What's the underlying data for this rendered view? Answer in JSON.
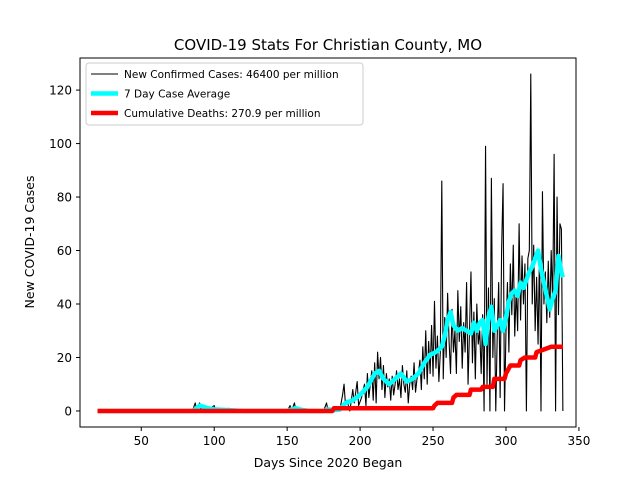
{
  "chart_data": {
    "type": "line",
    "title": "COVID-19 Stats For Christian County, MO",
    "xlabel": "Days Since 2020 Began",
    "ylabel": "New COVID-19 Cases",
    "xlim": [
      8,
      348
    ],
    "ylim": [
      -6,
      132
    ],
    "x_ticks": [
      50,
      100,
      150,
      200,
      250,
      300,
      350
    ],
    "y_ticks": [
      0,
      20,
      40,
      60,
      80,
      100,
      120
    ],
    "grid": false,
    "legend_position": "top-left",
    "series": [
      {
        "name": "New Confirmed Cases: 46400 per million",
        "color": "#000000",
        "style": "thin",
        "points": [
          [
            20,
            0
          ],
          [
            85,
            0
          ],
          [
            87,
            3
          ],
          [
            88,
            0
          ],
          [
            89,
            2
          ],
          [
            90,
            3
          ],
          [
            91,
            0
          ],
          [
            92,
            1
          ],
          [
            95,
            0
          ],
          [
            100,
            2
          ],
          [
            101,
            0
          ],
          [
            105,
            0
          ],
          [
            110,
            1
          ],
          [
            111,
            0
          ],
          [
            120,
            0
          ],
          [
            150,
            0
          ],
          [
            152,
            2
          ],
          [
            153,
            0
          ],
          [
            155,
            3
          ],
          [
            156,
            0
          ],
          [
            158,
            1
          ],
          [
            159,
            0
          ],
          [
            165,
            0
          ],
          [
            175,
            0
          ],
          [
            177,
            3
          ],
          [
            178,
            0
          ],
          [
            180,
            1
          ],
          [
            182,
            0
          ],
          [
            186,
            0
          ],
          [
            188,
            6
          ],
          [
            189,
            10
          ],
          [
            190,
            2
          ],
          [
            191,
            4
          ],
          [
            193,
            0
          ],
          [
            195,
            8
          ],
          [
            196,
            3
          ],
          [
            198,
            11
          ],
          [
            199,
            2
          ],
          [
            201,
            5
          ],
          [
            203,
            10
          ],
          [
            204,
            2
          ],
          [
            205,
            14
          ],
          [
            206,
            5
          ],
          [
            208,
            15
          ],
          [
            209,
            4
          ],
          [
            210,
            18
          ],
          [
            211,
            3
          ],
          [
            212,
            22
          ],
          [
            213,
            12
          ],
          [
            214,
            20
          ],
          [
            215,
            8
          ],
          [
            216,
            17
          ],
          [
            217,
            5
          ],
          [
            218,
            14
          ],
          [
            219,
            9
          ],
          [
            220,
            12
          ],
          [
            221,
            4
          ],
          [
            222,
            13
          ],
          [
            223,
            6
          ],
          [
            224,
            10
          ],
          [
            225,
            15
          ],
          [
            226,
            8
          ],
          [
            227,
            12
          ],
          [
            228,
            5
          ],
          [
            229,
            17
          ],
          [
            230,
            10
          ],
          [
            231,
            7
          ],
          [
            232,
            15
          ],
          [
            233,
            3
          ],
          [
            234,
            10
          ],
          [
            235,
            13
          ],
          [
            236,
            8
          ],
          [
            237,
            18
          ],
          [
            238,
            7
          ],
          [
            239,
            12
          ],
          [
            240,
            14
          ],
          [
            241,
            19
          ],
          [
            242,
            8
          ],
          [
            243,
            24
          ],
          [
            244,
            12
          ],
          [
            245,
            30
          ],
          [
            246,
            10
          ],
          [
            247,
            26
          ],
          [
            248,
            14
          ],
          [
            249,
            32
          ],
          [
            250,
            13
          ],
          [
            251,
            41
          ],
          [
            252,
            16
          ],
          [
            253,
            28
          ],
          [
            254,
            11
          ],
          [
            255,
            22
          ],
          [
            256,
            86
          ],
          [
            257,
            12
          ],
          [
            258,
            35
          ],
          [
            259,
            20
          ],
          [
            260,
            44
          ],
          [
            261,
            26
          ],
          [
            262,
            14
          ],
          [
            263,
            38
          ],
          [
            264,
            22
          ],
          [
            265,
            30
          ],
          [
            266,
            14
          ],
          [
            267,
            45
          ],
          [
            268,
            26
          ],
          [
            269,
            39
          ],
          [
            270,
            16
          ],
          [
            271,
            33
          ],
          [
            272,
            22
          ],
          [
            273,
            48
          ],
          [
            274,
            10
          ],
          [
            275,
            30
          ],
          [
            276,
            52
          ],
          [
            277,
            18
          ],
          [
            278,
            37
          ],
          [
            279,
            12
          ],
          [
            280,
            40
          ],
          [
            281,
            25
          ],
          [
            282,
            30
          ],
          [
            283,
            14
          ],
          [
            284,
            36
          ],
          [
            285,
            0
          ],
          [
            286,
            99
          ],
          [
            287,
            10
          ],
          [
            288,
            46
          ],
          [
            289,
            0
          ],
          [
            290,
            87
          ],
          [
            291,
            20
          ],
          [
            292,
            42
          ],
          [
            293,
            0
          ],
          [
            294,
            28
          ],
          [
            295,
            48
          ],
          [
            296,
            5
          ],
          [
            297,
            60
          ],
          [
            298,
            85
          ],
          [
            299,
            0
          ],
          [
            300,
            30
          ],
          [
            301,
            48
          ],
          [
            302,
            22
          ],
          [
            303,
            55
          ],
          [
            304,
            36
          ],
          [
            305,
            62
          ],
          [
            306,
            28
          ],
          [
            307,
            45
          ],
          [
            308,
            30
          ],
          [
            309,
            70
          ],
          [
            310,
            34
          ],
          [
            311,
            58
          ],
          [
            312,
            40
          ],
          [
            313,
            55
          ],
          [
            314,
            0
          ],
          [
            315,
            57
          ],
          [
            316,
            60
          ],
          [
            317,
            126
          ],
          [
            318,
            40
          ],
          [
            319,
            62
          ],
          [
            320,
            30
          ],
          [
            321,
            50
          ],
          [
            322,
            25
          ],
          [
            323,
            60
          ],
          [
            324,
            0
          ],
          [
            325,
            82
          ],
          [
            326,
            40
          ],
          [
            327,
            52
          ],
          [
            328,
            33
          ],
          [
            329,
            56
          ],
          [
            330,
            35
          ],
          [
            331,
            60
          ],
          [
            332,
            40
          ],
          [
            333,
            96
          ],
          [
            334,
            0
          ],
          [
            335,
            80
          ],
          [
            336,
            36
          ],
          [
            337,
            70
          ],
          [
            338,
            68
          ],
          [
            339,
            0
          ]
        ]
      },
      {
        "name": "7 Day Case Average",
        "color": "#00ffff",
        "style": "thick",
        "points": [
          [
            20,
            0
          ],
          [
            85,
            0
          ],
          [
            88,
            1
          ],
          [
            90,
            2
          ],
          [
            93,
            1.5
          ],
          [
            96,
            1
          ],
          [
            100,
            0.6
          ],
          [
            110,
            0.3
          ],
          [
            120,
            0
          ],
          [
            150,
            0
          ],
          [
            153,
            0.6
          ],
          [
            156,
            1
          ],
          [
            159,
            0.5
          ],
          [
            165,
            0
          ],
          [
            175,
            0
          ],
          [
            178,
            0.6
          ],
          [
            182,
            0.3
          ],
          [
            186,
            0.5
          ],
          [
            190,
            3
          ],
          [
            195,
            4
          ],
          [
            200,
            6
          ],
          [
            205,
            9
          ],
          [
            210,
            14
          ],
          [
            213,
            15
          ],
          [
            216,
            12
          ],
          [
            220,
            10
          ],
          [
            224,
            12
          ],
          [
            228,
            14
          ],
          [
            232,
            11
          ],
          [
            236,
            12
          ],
          [
            240,
            14
          ],
          [
            244,
            18
          ],
          [
            248,
            21
          ],
          [
            252,
            22
          ],
          [
            256,
            24
          ],
          [
            258,
            28
          ],
          [
            260,
            34
          ],
          [
            262,
            37
          ],
          [
            264,
            32
          ],
          [
            267,
            30
          ],
          [
            270,
            31
          ],
          [
            273,
            30
          ],
          [
            276,
            29
          ],
          [
            278,
            33
          ],
          [
            280,
            30
          ],
          [
            282,
            33
          ],
          [
            284,
            34
          ],
          [
            286,
            25
          ],
          [
            288,
            35
          ],
          [
            290,
            39
          ],
          [
            292,
            30
          ],
          [
            294,
            32
          ],
          [
            296,
            34
          ],
          [
            298,
            30
          ],
          [
            300,
            35
          ],
          [
            302,
            41
          ],
          [
            304,
            44
          ],
          [
            306,
            45
          ],
          [
            308,
            43
          ],
          [
            310,
            48
          ],
          [
            312,
            46
          ],
          [
            314,
            49
          ],
          [
            316,
            52
          ],
          [
            318,
            54
          ],
          [
            320,
            57
          ],
          [
            322,
            60
          ],
          [
            324,
            53
          ],
          [
            326,
            48
          ],
          [
            328,
            43
          ],
          [
            330,
            38
          ],
          [
            332,
            42
          ],
          [
            334,
            45
          ],
          [
            336,
            58
          ],
          [
            338,
            52
          ],
          [
            339,
            50
          ]
        ]
      },
      {
        "name": "Cumulative Deaths: 270.9 per million",
        "color": "#ff0000",
        "style": "thick",
        "points": [
          [
            20,
            0
          ],
          [
            181,
            0
          ],
          [
            182,
            1
          ],
          [
            250,
            1
          ],
          [
            251,
            2
          ],
          [
            253,
            3
          ],
          [
            263,
            3
          ],
          [
            264,
            5
          ],
          [
            266,
            6
          ],
          [
            275,
            6
          ],
          [
            276,
            8
          ],
          [
            283,
            8
          ],
          [
            284,
            9
          ],
          [
            291,
            9
          ],
          [
            292,
            12
          ],
          [
            299,
            12
          ],
          [
            300,
            14
          ],
          [
            303,
            17
          ],
          [
            309,
            17
          ],
          [
            310,
            19
          ],
          [
            313,
            20
          ],
          [
            320,
            20
          ],
          [
            321,
            22
          ],
          [
            326,
            23
          ],
          [
            331,
            24
          ],
          [
            339,
            24
          ]
        ]
      }
    ]
  }
}
